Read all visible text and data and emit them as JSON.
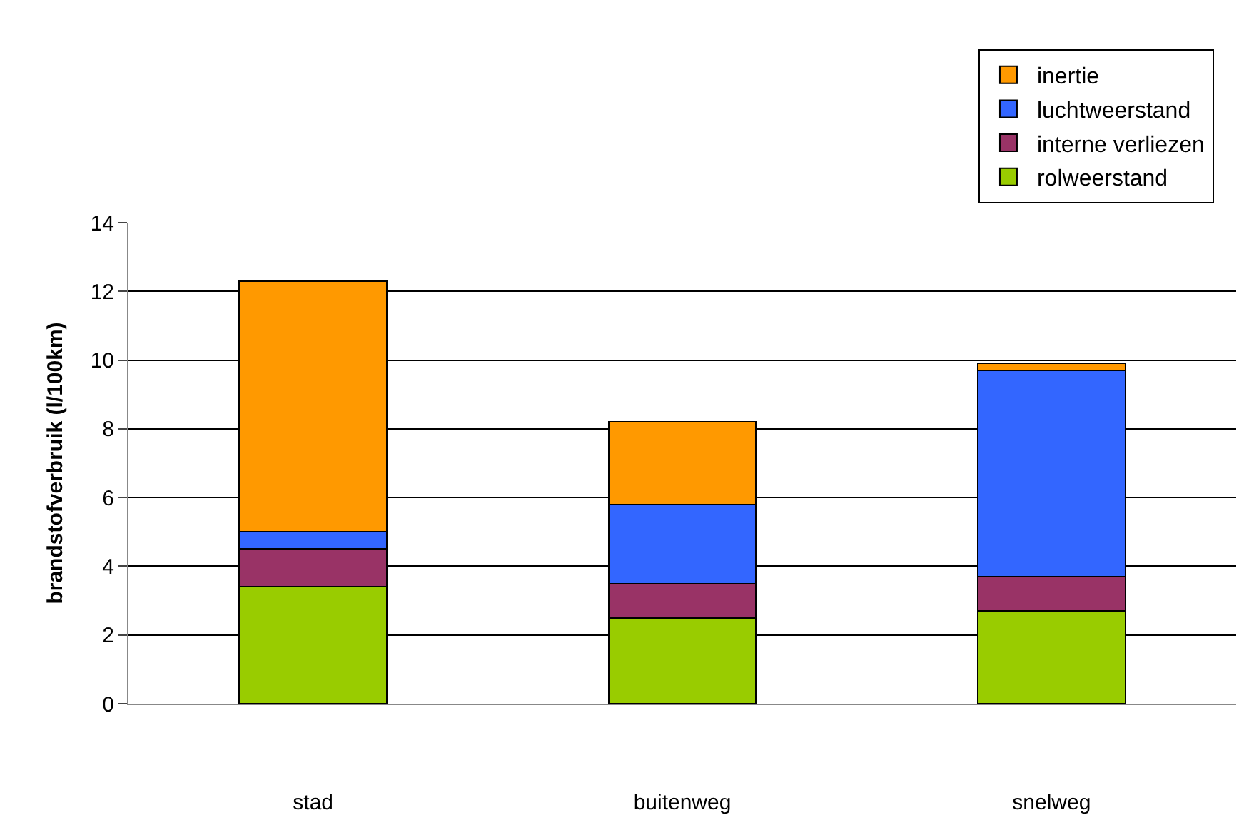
{
  "chart_data": {
    "type": "bar",
    "stacked": true,
    "ylabel": "brandstofverbruik (l/100km)",
    "categories": [
      "stad",
      "buitenweg",
      "snelweg"
    ],
    "series": [
      {
        "name": "rolweerstand",
        "color": "#99cc00",
        "values": [
          3.4,
          2.5,
          2.7
        ]
      },
      {
        "name": "interne verliezen",
        "color": "#993366",
        "values": [
          1.1,
          1.0,
          1.0
        ]
      },
      {
        "name": "luchtweerstand",
        "color": "#3366ff",
        "values": [
          0.5,
          2.3,
          6.0
        ]
      },
      {
        "name": "inertie",
        "color": "#ff9900",
        "values": [
          7.3,
          2.4,
          0.2
        ]
      }
    ],
    "ylim": [
      0,
      14
    ],
    "yticks": [
      0,
      2,
      4,
      6,
      8,
      10,
      12,
      14
    ],
    "grid": "y",
    "legend": "top right"
  }
}
